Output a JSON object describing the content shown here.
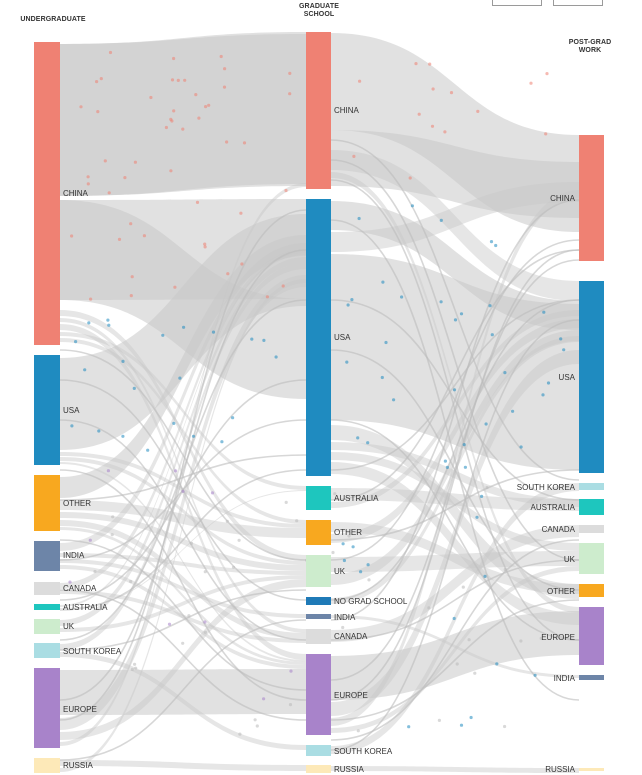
{
  "columns": {
    "undergraduate": "UNDERGRADUATE",
    "graduate_line1": "GRADUATE",
    "graduate_line2": "SCHOOL",
    "postgrad_line1": "POST-GRAD",
    "postgrad_line2": "WORK"
  },
  "colors": {
    "CHINA": "#ef8173",
    "USA": "#1f8bc0",
    "OTHER": "#f8a81f",
    "INDIA": "#6d85a8",
    "CANADA": "#dcdcdc",
    "AUSTRALIA": "#1ec6be",
    "UK": "#cdeccd",
    "SOUTH KOREA": "#aadde3",
    "EUROPE": "#a883ca",
    "RUSSIA": "#fde9b8",
    "NO GRAD SCHOOL": "#1f7ab7",
    "link": "#c8c8c8"
  },
  "nodes": {
    "undergraduate": [
      {
        "label": "CHINA"
      },
      {
        "label": "USA"
      },
      {
        "label": "OTHER"
      },
      {
        "label": "INDIA"
      },
      {
        "label": "CANADA"
      },
      {
        "label": "AUSTRALIA"
      },
      {
        "label": "UK"
      },
      {
        "label": "SOUTH KOREA"
      },
      {
        "label": "EUROPE"
      },
      {
        "label": "RUSSIA"
      }
    ],
    "graduate": [
      {
        "label": "CHINA"
      },
      {
        "label": "USA"
      },
      {
        "label": "AUSTRALIA"
      },
      {
        "label": "OTHER"
      },
      {
        "label": "UK"
      },
      {
        "label": "NO GRAD SCHOOL"
      },
      {
        "label": "INDIA"
      },
      {
        "label": "CANADA"
      },
      {
        "label": "EUROPE"
      },
      {
        "label": "SOUTH KOREA"
      },
      {
        "label": "RUSSIA"
      }
    ],
    "postgrad": [
      {
        "label": "CHINA"
      },
      {
        "label": "USA"
      },
      {
        "label": "SOUTH KOREA"
      },
      {
        "label": "AUSTRALIA"
      },
      {
        "label": "CANADA"
      },
      {
        "label": "UK"
      },
      {
        "label": "OTHER"
      },
      {
        "label": "EUROPE"
      },
      {
        "label": "INDIA"
      },
      {
        "label": "RUSSIA"
      }
    ]
  }
}
